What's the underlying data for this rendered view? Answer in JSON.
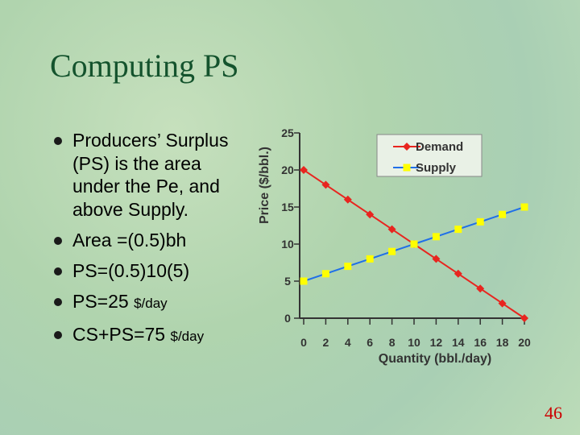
{
  "title": "Computing PS",
  "bullets": [
    {
      "text": "Producers’ Surplus (PS) is the area under the Pe, and above Supply."
    },
    {
      "text": "Area =(0.5)bh"
    },
    {
      "text": "PS=(0.5)10(5)"
    },
    {
      "text": "PS=25",
      "unit": "$/day"
    },
    {
      "text": "CS+PS=75",
      "unit": "$/day"
    }
  ],
  "page_number": "46",
  "chart_data": {
    "type": "line",
    "x": [
      0,
      2,
      4,
      6,
      8,
      10,
      12,
      14,
      16,
      18,
      20
    ],
    "series": [
      {
        "name": "Demand",
        "color": "#e8251f",
        "marker_color": "#e8251f",
        "values": [
          20,
          18,
          16,
          14,
          12,
          10,
          8,
          6,
          4,
          2,
          0
        ]
      },
      {
        "name": "Supply",
        "color": "#1f6fe8",
        "marker_color": "#ffff00",
        "values": [
          5,
          6,
          7,
          8,
          9,
          10,
          11,
          12,
          13,
          14,
          15
        ]
      }
    ],
    "xlim": [
      0,
      20
    ],
    "ylim": [
      0,
      25
    ],
    "xticks": [
      0,
      2,
      4,
      6,
      8,
      10,
      12,
      14,
      16,
      18,
      20
    ],
    "yticks": [
      0,
      5,
      10,
      15,
      20,
      25
    ],
    "xlabel": "Quantity (bbl./day)",
    "ylabel": "Price ($/bbl.)",
    "legend": "top-right"
  }
}
